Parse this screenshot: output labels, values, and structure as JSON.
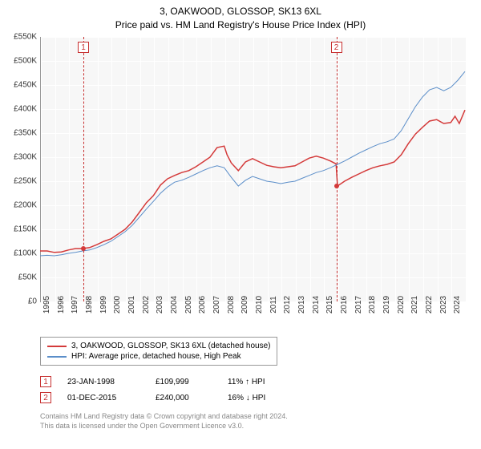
{
  "title_line1": "3, OAKWOOD, GLOSSOP, SK13 6XL",
  "title_line2": "Price paid vs. HM Land Registry's House Price Index (HPI)",
  "chart": {
    "type": "line",
    "background_color": "#f7f7f7",
    "grid_color": "#ffffff",
    "axis_color": "#999999",
    "ylim": [
      0,
      550
    ],
    "ytick_step": 50,
    "yticks": [
      "£0",
      "£50K",
      "£100K",
      "£150K",
      "£200K",
      "£250K",
      "£300K",
      "£350K",
      "£400K",
      "£450K",
      "£500K",
      "£550K"
    ],
    "xlim": [
      1995,
      2025
    ],
    "xticks": [
      "1995",
      "1996",
      "1997",
      "1998",
      "1999",
      "2000",
      "2001",
      "2002",
      "2003",
      "2004",
      "2005",
      "2006",
      "2007",
      "2008",
      "2009",
      "2010",
      "2011",
      "2012",
      "2013",
      "2014",
      "2015",
      "2016",
      "2017",
      "2018",
      "2019",
      "2020",
      "2021",
      "2022",
      "2023",
      "2024"
    ],
    "label_fontsize": 10,
    "series": [
      {
        "name": "3, OAKWOOD, GLOSSOP, SK13 6XL (detached house)",
        "color": "#d43a3a",
        "line_width": 1.5,
        "data": [
          [
            1995,
            105
          ],
          [
            1995.5,
            105
          ],
          [
            1996,
            102
          ],
          [
            1996.5,
            103
          ],
          [
            1997,
            107
          ],
          [
            1997.5,
            110
          ],
          [
            1998,
            110
          ],
          [
            1998.5,
            112
          ],
          [
            1999,
            118
          ],
          [
            1999.5,
            125
          ],
          [
            2000,
            130
          ],
          [
            2000.5,
            140
          ],
          [
            2001,
            150
          ],
          [
            2001.5,
            165
          ],
          [
            2002,
            185
          ],
          [
            2002.5,
            205
          ],
          [
            2003,
            220
          ],
          [
            2003.5,
            242
          ],
          [
            2004,
            255
          ],
          [
            2004.5,
            262
          ],
          [
            2005,
            268
          ],
          [
            2005.5,
            272
          ],
          [
            2006,
            280
          ],
          [
            2006.5,
            290
          ],
          [
            2007,
            300
          ],
          [
            2007.5,
            320
          ],
          [
            2008,
            323
          ],
          [
            2008.2,
            305
          ],
          [
            2008.5,
            288
          ],
          [
            2009,
            272
          ],
          [
            2009.5,
            290
          ],
          [
            2010,
            297
          ],
          [
            2010.5,
            290
          ],
          [
            2011,
            283
          ],
          [
            2011.5,
            280
          ],
          [
            2012,
            278
          ],
          [
            2012.5,
            280
          ],
          [
            2013,
            282
          ],
          [
            2013.5,
            290
          ],
          [
            2014,
            298
          ],
          [
            2014.5,
            302
          ],
          [
            2015,
            298
          ],
          [
            2015.5,
            292
          ],
          [
            2015.9,
            286
          ],
          [
            2016,
            240
          ],
          [
            2016.5,
            250
          ],
          [
            2017,
            258
          ],
          [
            2017.5,
            265
          ],
          [
            2018,
            272
          ],
          [
            2018.5,
            278
          ],
          [
            2019,
            282
          ],
          [
            2019.5,
            285
          ],
          [
            2020,
            290
          ],
          [
            2020.5,
            305
          ],
          [
            2021,
            328
          ],
          [
            2021.5,
            348
          ],
          [
            2022,
            362
          ],
          [
            2022.5,
            375
          ],
          [
            2023,
            378
          ],
          [
            2023.5,
            370
          ],
          [
            2024,
            372
          ],
          [
            2024.3,
            385
          ],
          [
            2024.6,
            370
          ],
          [
            2025,
            398
          ]
        ]
      },
      {
        "name": "HPI: Average price, detached house, High Peak",
        "color": "#5b8ec9",
        "line_width": 1,
        "data": [
          [
            1995,
            95
          ],
          [
            1995.5,
            96
          ],
          [
            1996,
            95
          ],
          [
            1996.5,
            97
          ],
          [
            1997,
            100
          ],
          [
            1997.5,
            102
          ],
          [
            1998,
            105
          ],
          [
            1998.5,
            107
          ],
          [
            1999,
            112
          ],
          [
            1999.5,
            118
          ],
          [
            2000,
            125
          ],
          [
            2000.5,
            135
          ],
          [
            2001,
            145
          ],
          [
            2001.5,
            158
          ],
          [
            2002,
            175
          ],
          [
            2002.5,
            192
          ],
          [
            2003,
            208
          ],
          [
            2003.5,
            225
          ],
          [
            2004,
            238
          ],
          [
            2004.5,
            248
          ],
          [
            2005,
            252
          ],
          [
            2005.5,
            258
          ],
          [
            2006,
            265
          ],
          [
            2006.5,
            272
          ],
          [
            2007,
            278
          ],
          [
            2007.5,
            282
          ],
          [
            2008,
            278
          ],
          [
            2008.5,
            258
          ],
          [
            2009,
            240
          ],
          [
            2009.5,
            252
          ],
          [
            2010,
            260
          ],
          [
            2010.5,
            255
          ],
          [
            2011,
            250
          ],
          [
            2011.5,
            248
          ],
          [
            2012,
            245
          ],
          [
            2012.5,
            248
          ],
          [
            2013,
            250
          ],
          [
            2013.5,
            256
          ],
          [
            2014,
            262
          ],
          [
            2014.5,
            268
          ],
          [
            2015,
            272
          ],
          [
            2015.5,
            278
          ],
          [
            2016,
            285
          ],
          [
            2016.5,
            292
          ],
          [
            2017,
            300
          ],
          [
            2017.5,
            308
          ],
          [
            2018,
            315
          ],
          [
            2018.5,
            322
          ],
          [
            2019,
            328
          ],
          [
            2019.5,
            332
          ],
          [
            2020,
            338
          ],
          [
            2020.5,
            355
          ],
          [
            2021,
            380
          ],
          [
            2021.5,
            405
          ],
          [
            2022,
            425
          ],
          [
            2022.5,
            440
          ],
          [
            2023,
            445
          ],
          [
            2023.5,
            438
          ],
          [
            2024,
            445
          ],
          [
            2024.5,
            460
          ],
          [
            2025,
            478
          ]
        ]
      }
    ],
    "markers": [
      {
        "label": "1",
        "x": 1998.06,
        "price": 109.999
      },
      {
        "label": "2",
        "x": 2015.92,
        "price": 240
      }
    ]
  },
  "legend": {
    "items": [
      {
        "color": "#d43a3a",
        "label": "3, OAKWOOD, GLOSSOP, SK13 6XL (detached house)"
      },
      {
        "color": "#5b8ec9",
        "label": "HPI: Average price, detached house, High Peak"
      }
    ]
  },
  "sales": [
    {
      "num": "1",
      "date": "23-JAN-1998",
      "price": "£109,999",
      "diff": "11% ↑ HPI"
    },
    {
      "num": "2",
      "date": "01-DEC-2015",
      "price": "£240,000",
      "diff": "16% ↓ HPI"
    }
  ],
  "footnote_line1": "Contains HM Land Registry data © Crown copyright and database right 2024.",
  "footnote_line2": "This data is licensed under the Open Government Licence v3.0."
}
